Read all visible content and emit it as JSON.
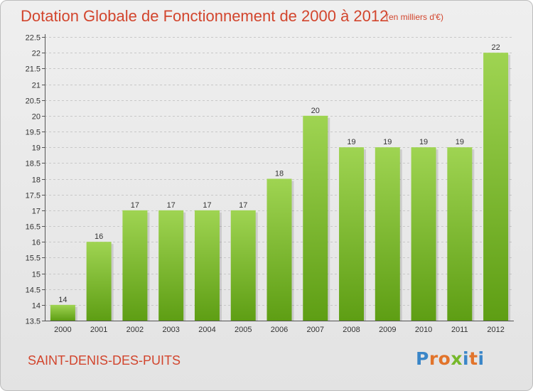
{
  "header": {
    "title": "Dotation Globale de Fonctionnement de 2000 à 2012",
    "subtitle": "(en milliers d'€)"
  },
  "footer": {
    "commune": "SAINT-DENIS-DES-PUITS",
    "brand": "Proxiti",
    "brand_colors": [
      "#3a86c8",
      "#e2742b",
      "#e2742b",
      "#76b82a",
      "#3a86c8",
      "#e2742b",
      "#3a86c8"
    ]
  },
  "colors": {
    "bar_top": "#9fd452",
    "bar_bottom": "#5e9e14",
    "text_accent": "#d2452d",
    "gridline": "#c8c8c8"
  },
  "chart_data": {
    "type": "bar",
    "title": "Dotation Globale de Fonctionnement de 2000 à 2012",
    "subtitle": "(en milliers d'€)",
    "categories": [
      "2000",
      "2001",
      "2002",
      "2003",
      "2004",
      "2005",
      "2006",
      "2007",
      "2008",
      "2009",
      "2010",
      "2011",
      "2012"
    ],
    "values": [
      14,
      16,
      17,
      17,
      17,
      17,
      18,
      20,
      19,
      19,
      19,
      19,
      22
    ],
    "data_labels": [
      "14",
      "16",
      "17",
      "17",
      "17",
      "17",
      "18",
      "20",
      "19",
      "19",
      "19",
      "19",
      "22"
    ],
    "ylim": [
      13.5,
      22.5
    ],
    "yticks": [
      13.5,
      14,
      14.5,
      15,
      15.5,
      16,
      16.5,
      17,
      17.5,
      18,
      18.5,
      19,
      19.5,
      20,
      20.5,
      21,
      21.5,
      22,
      22.5
    ],
    "ytick_labels": [
      "13.5",
      "14",
      "14.5",
      "15",
      "15.5",
      "16",
      "16.5",
      "17",
      "17.5",
      "18",
      "18.5",
      "19",
      "19.5",
      "20",
      "20.5",
      "21",
      "21.5",
      "22",
      "22.5"
    ],
    "grid": "horizontal dashed",
    "legend": "none"
  }
}
